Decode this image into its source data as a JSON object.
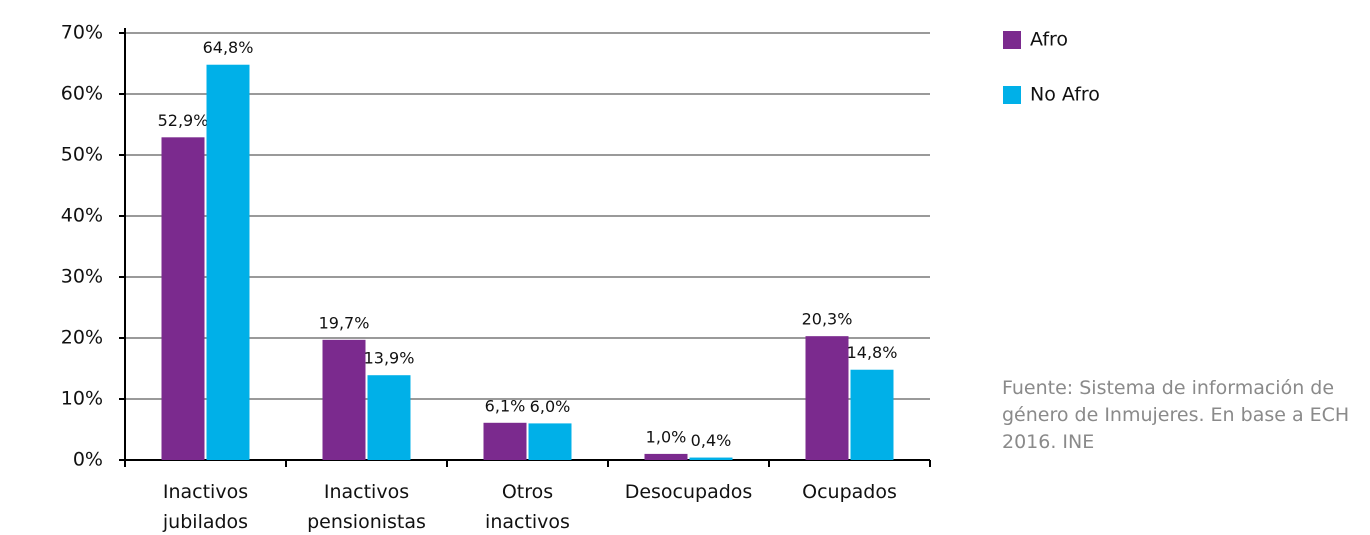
{
  "chart_data": {
    "type": "bar",
    "categories": [
      "Inactivos jubilados",
      "Inactivos pensionistas",
      "Otros inactivos",
      "Desocupados",
      "Ocupados"
    ],
    "series": [
      {
        "name": "Afro",
        "color": "#7b2a8e",
        "values": [
          52.9,
          19.7,
          6.1,
          1.0,
          20.3
        ],
        "value_labels": [
          "52,9%",
          "19,7%",
          "6,1%",
          "1,0%",
          "20,3%"
        ]
      },
      {
        "name": "No Afro",
        "color": "#00b0e8",
        "values": [
          64.8,
          13.9,
          6.0,
          0.4,
          14.8
        ],
        "value_labels": [
          "64,8%",
          "13,9%",
          "6,0%",
          "0,4%",
          "14,8%"
        ]
      }
    ],
    "ylim": [
      0,
      70
    ],
    "yticks": [
      {
        "value": 0,
        "label": "0%"
      },
      {
        "value": 10,
        "label": "10%"
      },
      {
        "value": 20,
        "label": "20%"
      },
      {
        "value": 30,
        "label": "30%"
      },
      {
        "value": 40,
        "label": "40%"
      },
      {
        "value": 50,
        "label": "50%"
      },
      {
        "value": 60,
        "label": "60%"
      },
      {
        "value": 70,
        "label": "70%"
      }
    ],
    "grid": true,
    "legend": "right",
    "source": "Fuente: Sistema de información de género de Inmujeres. En base a ECH 2016. INE"
  }
}
